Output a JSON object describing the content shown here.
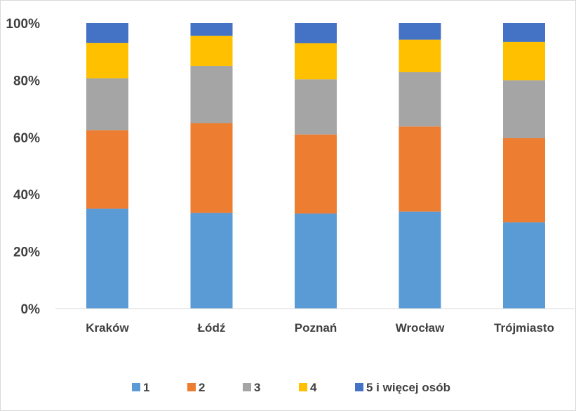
{
  "chart_data": {
    "type": "bar",
    "stacked": "percent",
    "categories": [
      "Kraków",
      "Łódź",
      "Poznań",
      "Wrocław",
      "Trójmiasto"
    ],
    "series": [
      {
        "name": "1",
        "color": "#5b9bd5",
        "values": [
          35,
          33.5,
          33.3,
          34,
          30.2
        ]
      },
      {
        "name": "2",
        "color": "#ed7d31",
        "values": [
          27.5,
          31.5,
          27.7,
          29.8,
          29.5
        ]
      },
      {
        "name": "3",
        "color": "#a5a5a5",
        "values": [
          18.2,
          20,
          19.3,
          19,
          20.3
        ]
      },
      {
        "name": "4",
        "color": "#ffc000",
        "values": [
          12.4,
          10.6,
          12.7,
          11.4,
          13.4
        ]
      },
      {
        "name": "5 i więcej osób",
        "color": "#4472c4",
        "values": [
          6.9,
          4.4,
          7,
          5.8,
          6.6
        ]
      }
    ],
    "y_ticks": [
      "0%",
      "20%",
      "40%",
      "60%",
      "80%",
      "100%"
    ],
    "ylim": [
      0,
      100
    ],
    "grid": false,
    "legend_position": "bottom"
  }
}
